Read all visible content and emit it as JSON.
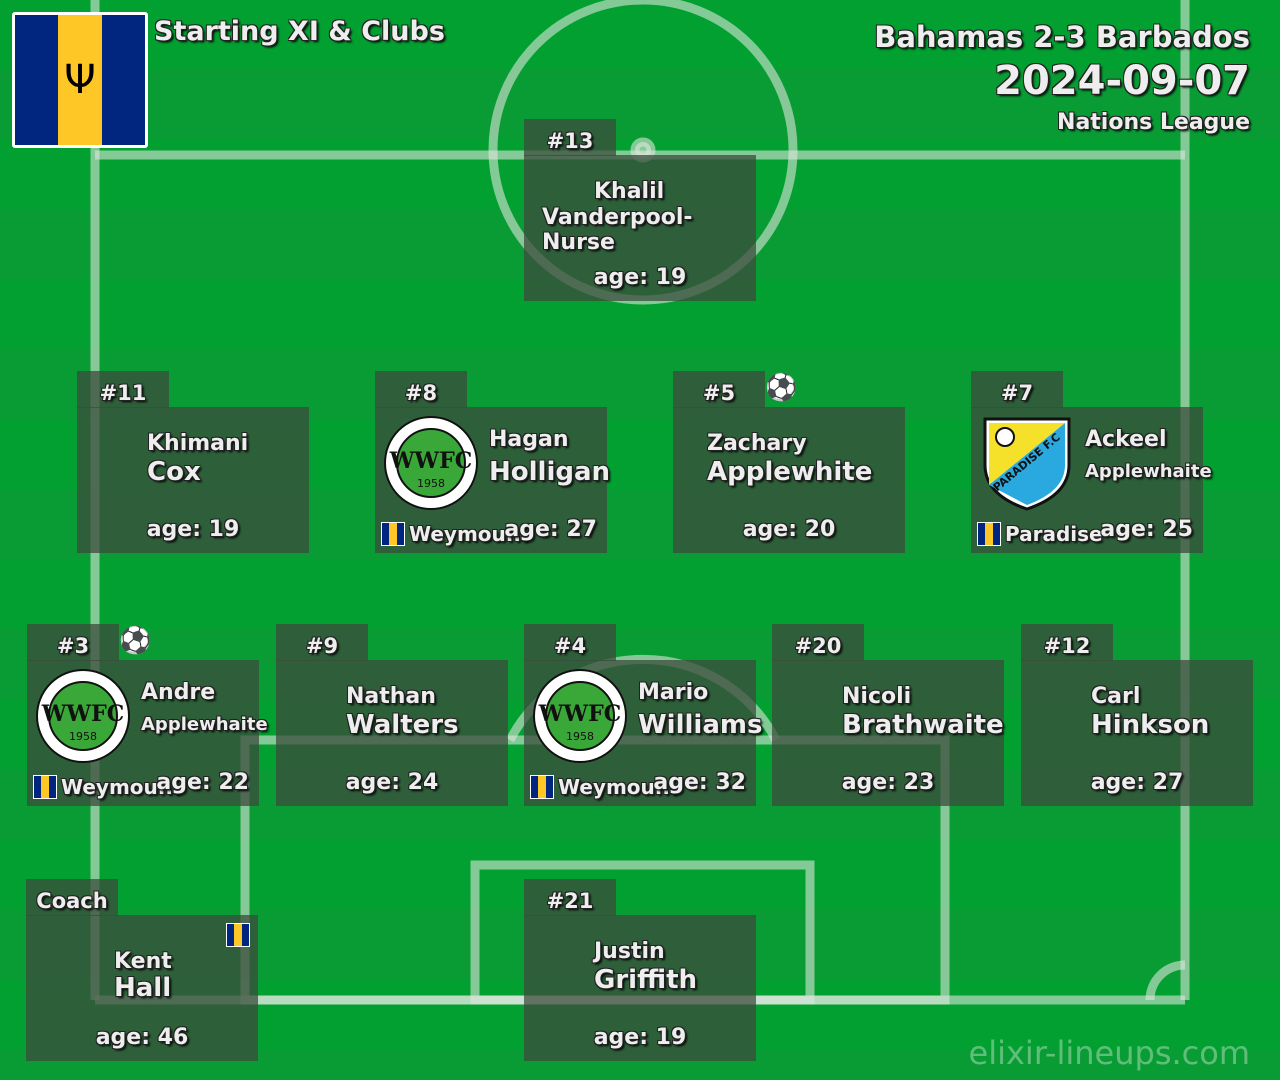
{
  "header": {
    "title": "Starting XI & Clubs",
    "match": "Bahamas 2-3 Barbados",
    "date": "2024-09-07",
    "competition": "Nations League"
  },
  "colors": {
    "pitch": "#02a030",
    "card": "#3c4b3c",
    "flag_blue": "#00267f",
    "flag_gold": "#ffc726"
  },
  "players": [
    {
      "number": "#13",
      "first": "Khalil",
      "last": "Vanderpool-Nurse",
      "age": "age: 19"
    },
    {
      "number": "#11",
      "first": "Khimani",
      "last": "Cox",
      "age": "age: 19"
    },
    {
      "number": "#8",
      "first": "Hagan",
      "last": "Holligan",
      "age": "age: 27",
      "club": "Weymou...",
      "club_logo": "WWFC 1958"
    },
    {
      "number": "#5",
      "first": "Zachary",
      "last": "Applewhite",
      "age": "age: 20",
      "goal": true
    },
    {
      "number": "#7",
      "first": "Ackeel",
      "last": "Applewhaite",
      "age": "age: 25",
      "club": "Paradise",
      "club_logo": "PARADISE F.C"
    },
    {
      "number": "#3",
      "first": "Andre",
      "last": "Applewhaite",
      "age": "age: 22",
      "club": "Weymou...",
      "club_logo": "WWFC 1958",
      "goal": true
    },
    {
      "number": "#9",
      "first": "Nathan",
      "last": "Walters",
      "age": "age: 24"
    },
    {
      "number": "#4",
      "first": "Mario",
      "last": "Williams",
      "age": "age: 32",
      "club": "Weymou...",
      "club_logo": "WWFC 1958"
    },
    {
      "number": "#20",
      "first": "Nicoli",
      "last": "Brathwaite",
      "age": "age: 23"
    },
    {
      "number": "#12",
      "first": "Carl",
      "last": "Hinkson",
      "age": "age: 27"
    },
    {
      "number": "#21",
      "first": "Justin",
      "last": "Griffith",
      "age": "age: 19"
    }
  ],
  "coach": {
    "label": "Coach",
    "first": "Kent",
    "last": "Hall",
    "age": "age: 46"
  },
  "watermark": "elixir-lineups.com"
}
